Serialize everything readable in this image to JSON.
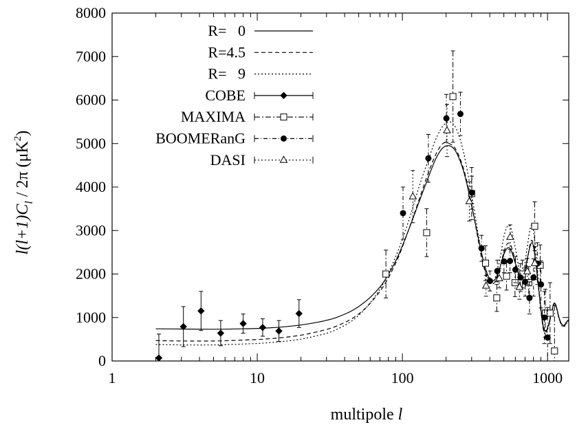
{
  "chart_data": {
    "type": "scatter",
    "xlabel_prefix": "multipole",
    "xlabel_var": "l",
    "ylabel_pre": "l(l+1)C",
    "ylabel_sub": "l",
    "ylabel_post": " / 2π  (μK",
    "ylabel_sup": "2",
    "ylabel_end": ")",
    "x_scale": "log",
    "xlim": [
      1,
      1400
    ],
    "ylim": [
      0,
      8000
    ],
    "x_ticks": [
      {
        "v": 1,
        "label": "1"
      },
      {
        "v": 10,
        "label": "10"
      },
      {
        "v": 100,
        "label": "100"
      },
      {
        "v": 1000,
        "label": "1000"
      }
    ],
    "y_ticks": [
      {
        "v": 0,
        "label": "0"
      },
      {
        "v": 1000,
        "label": "1000"
      },
      {
        "v": 2000,
        "label": "2000"
      },
      {
        "v": 3000,
        "label": "3000"
      },
      {
        "v": 4000,
        "label": "4000"
      },
      {
        "v": 5000,
        "label": "5000"
      },
      {
        "v": 6000,
        "label": "6000"
      },
      {
        "v": 7000,
        "label": "7000"
      },
      {
        "v": 8000,
        "label": "8000"
      }
    ],
    "legend_position": "top-left",
    "models": [
      {
        "name": "R=   0",
        "dash": "none",
        "points": [
          [
            2,
            740
          ],
          [
            3,
            735
          ],
          [
            5,
            730
          ],
          [
            8,
            740
          ],
          [
            12,
            760
          ],
          [
            18,
            810
          ],
          [
            25,
            880
          ],
          [
            35,
            1000
          ],
          [
            50,
            1250
          ],
          [
            70,
            1700
          ],
          [
            90,
            2300
          ],
          [
            110,
            3000
          ],
          [
            130,
            3650
          ],
          [
            150,
            4200
          ],
          [
            170,
            4650
          ],
          [
            190,
            4900
          ],
          [
            210,
            4950
          ],
          [
            230,
            4850
          ],
          [
            250,
            4600
          ],
          [
            270,
            4250
          ],
          [
            290,
            3800
          ],
          [
            310,
            3350
          ],
          [
            330,
            2900
          ],
          [
            350,
            2500
          ],
          [
            380,
            2050
          ],
          [
            410,
            1850
          ],
          [
            440,
            1900
          ],
          [
            470,
            2150
          ],
          [
            500,
            2450
          ],
          [
            530,
            2600
          ],
          [
            560,
            2550
          ],
          [
            600,
            2250
          ],
          [
            640,
            1950
          ],
          [
            680,
            1950
          ],
          [
            720,
            2300
          ],
          [
            760,
            2650
          ],
          [
            790,
            2700
          ],
          [
            820,
            2400
          ],
          [
            860,
            1800
          ],
          [
            900,
            1200
          ],
          [
            940,
            750
          ],
          [
            980,
            700
          ],
          [
            1020,
            850
          ],
          [
            1070,
            1150
          ],
          [
            1110,
            1330
          ],
          [
            1150,
            1250
          ],
          [
            1200,
            1000
          ],
          [
            1250,
            850
          ],
          [
            1300,
            820
          ],
          [
            1350,
            900
          ],
          [
            1400,
            950
          ]
        ]
      },
      {
        "name": "R=4.5",
        "dash": "6,4",
        "points": [
          [
            2,
            470
          ],
          [
            3,
            460
          ],
          [
            5,
            460
          ],
          [
            8,
            480
          ],
          [
            12,
            510
          ],
          [
            18,
            570
          ],
          [
            25,
            660
          ],
          [
            35,
            800
          ],
          [
            50,
            1080
          ],
          [
            70,
            1600
          ],
          [
            90,
            2250
          ],
          [
            110,
            3000
          ],
          [
            130,
            3700
          ],
          [
            150,
            4300
          ],
          [
            170,
            4750
          ],
          [
            190,
            5000
          ],
          [
            210,
            5000
          ],
          [
            230,
            4900
          ],
          [
            250,
            4650
          ],
          [
            270,
            4300
          ],
          [
            290,
            3850
          ],
          [
            310,
            3350
          ],
          [
            330,
            2850
          ],
          [
            350,
            2400
          ],
          [
            380,
            1950
          ],
          [
            410,
            1780
          ],
          [
            440,
            1850
          ],
          [
            470,
            2150
          ],
          [
            500,
            2500
          ],
          [
            530,
            2700
          ],
          [
            560,
            2650
          ],
          [
            600,
            2300
          ],
          [
            640,
            1950
          ],
          [
            680,
            1900
          ],
          [
            720,
            2250
          ],
          [
            760,
            2700
          ],
          [
            790,
            2750
          ],
          [
            820,
            2450
          ],
          [
            860,
            1800
          ],
          [
            900,
            1150
          ],
          [
            940,
            700
          ],
          [
            980,
            680
          ],
          [
            1020,
            850
          ],
          [
            1070,
            1150
          ],
          [
            1110,
            1320
          ],
          [
            1150,
            1230
          ],
          [
            1200,
            980
          ],
          [
            1250,
            830
          ],
          [
            1300,
            800
          ],
          [
            1350,
            880
          ],
          [
            1400,
            930
          ]
        ]
      },
      {
        "name": "R=   9",
        "dash": "2,3",
        "points": [
          [
            2,
            380
          ],
          [
            3,
            370
          ],
          [
            5,
            370
          ],
          [
            8,
            390
          ],
          [
            12,
            420
          ],
          [
            18,
            480
          ],
          [
            25,
            570
          ],
          [
            35,
            720
          ],
          [
            50,
            1050
          ],
          [
            70,
            1650
          ],
          [
            90,
            2400
          ],
          [
            110,
            3200
          ],
          [
            130,
            4000
          ],
          [
            150,
            4600
          ],
          [
            170,
            5100
          ],
          [
            190,
            5400
          ],
          [
            210,
            5500
          ],
          [
            230,
            5400
          ],
          [
            250,
            5100
          ],
          [
            270,
            4650
          ],
          [
            290,
            4100
          ],
          [
            310,
            3550
          ],
          [
            330,
            3000
          ],
          [
            350,
            2500
          ],
          [
            380,
            2000
          ],
          [
            410,
            1800
          ],
          [
            440,
            1950
          ],
          [
            470,
            2350
          ],
          [
            500,
            2850
          ],
          [
            530,
            3100
          ],
          [
            560,
            3050
          ],
          [
            600,
            2600
          ],
          [
            640,
            2100
          ],
          [
            680,
            2050
          ],
          [
            720,
            2550
          ],
          [
            760,
            3050
          ],
          [
            790,
            3100
          ],
          [
            820,
            2700
          ],
          [
            860,
            1950
          ],
          [
            900,
            1200
          ],
          [
            940,
            700
          ],
          [
            980,
            650
          ],
          [
            1020,
            820
          ],
          [
            1070,
            1120
          ],
          [
            1110,
            1300
          ],
          [
            1150,
            1220
          ],
          [
            1200,
            980
          ],
          [
            1250,
            820
          ],
          [
            1300,
            790
          ],
          [
            1350,
            860
          ],
          [
            1400,
            920
          ]
        ]
      }
    ],
    "datasets": [
      {
        "name": "COBE",
        "marker": "diamond",
        "dash": "none",
        "points": [
          [
            2.1,
            70,
            550
          ],
          [
            3.1,
            790,
            460
          ],
          [
            4.1,
            1150,
            450
          ],
          [
            5.6,
            640,
            290
          ],
          [
            8.0,
            860,
            220
          ],
          [
            10.9,
            770,
            200
          ],
          [
            14.1,
            690,
            240
          ],
          [
            19.4,
            1090,
            320
          ]
        ]
      },
      {
        "name": "MAXIMA",
        "marker": "square",
        "dash": "8,3,2,3",
        "points": [
          [
            77,
            2000,
            550
          ],
          [
            147,
            2950,
            550
          ],
          [
            223,
            6080,
            1050
          ],
          [
            300,
            3850,
            600
          ],
          [
            374,
            2250,
            400
          ],
          [
            447,
            1450,
            310
          ],
          [
            522,
            1950,
            320
          ],
          [
            597,
            1800,
            320
          ],
          [
            671,
            2000,
            320
          ],
          [
            742,
            1800,
            370
          ],
          [
            816,
            3100,
            560
          ],
          [
            890,
            2200,
            470
          ],
          [
            966,
            1100,
            550
          ],
          [
            1041,
            1100,
            700
          ],
          [
            1117,
            230,
            1050
          ]
        ]
      },
      {
        "name": "BOOMERanG",
        "marker": "circle",
        "dash": "6,3,1,3",
        "points": [
          [
            101,
            3400,
            600
          ],
          [
            151,
            4660,
            550
          ],
          [
            201,
            5580,
            550
          ],
          [
            251,
            5680,
            500
          ],
          [
            301,
            3870,
            380
          ],
          [
            351,
            2590,
            300
          ],
          [
            401,
            1840,
            230
          ],
          [
            451,
            2070,
            250
          ],
          [
            501,
            2290,
            260
          ],
          [
            551,
            2300,
            270
          ],
          [
            601,
            2100,
            300
          ],
          [
            651,
            1920,
            320
          ],
          [
            701,
            1820,
            330
          ],
          [
            751,
            1450,
            370
          ],
          [
            801,
            1920,
            430
          ],
          [
            851,
            2240,
            480
          ],
          [
            901,
            1760,
            540
          ],
          [
            951,
            1000,
            600
          ],
          [
            1001,
            540,
            690
          ]
        ]
      },
      {
        "name": "DASI",
        "marker": "triangle",
        "dash": "2,3",
        "points": [
          [
            118,
            3780,
            600
          ],
          [
            203,
            5300,
            600
          ],
          [
            289,
            3670,
            450
          ],
          [
            377,
            1730,
            240
          ],
          [
            465,
            1900,
            220
          ],
          [
            553,
            2850,
            280
          ],
          [
            641,
            1700,
            280
          ],
          [
            725,
            2060,
            300
          ],
          [
            817,
            2250,
            380
          ]
        ]
      }
    ]
  }
}
